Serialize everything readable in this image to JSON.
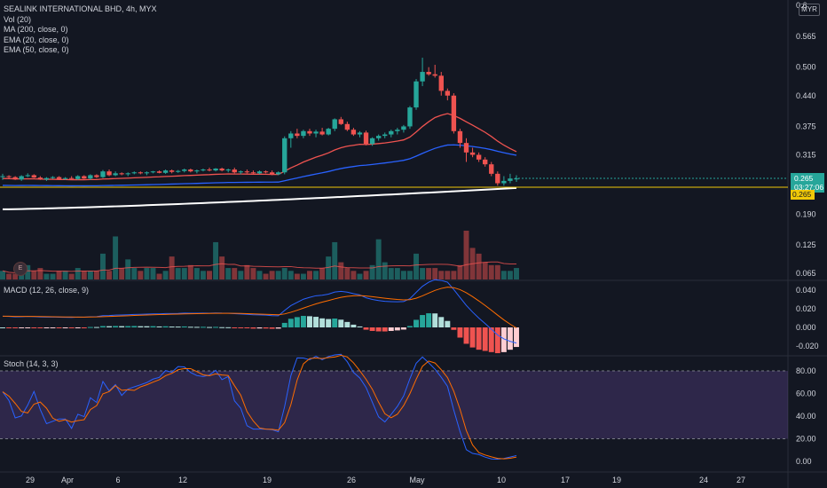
{
  "header": {
    "title": "SEALINK INTERNATIONAL BHD, 4h, MYX",
    "currency": "MYR",
    "indicators": [
      "Vol (20)",
      "MA (200, close, 0)",
      "EMA (20, close, 0)",
      "EMA (50, close, 0)"
    ],
    "macd_title": "MACD (12, 26, close, 9)",
    "stoch_title": "Stoch (14, 3, 3)"
  },
  "badges": {
    "current_price": "0.265",
    "countdown": "03:27:06",
    "level": "0.265",
    "earnings": "E"
  },
  "colors": {
    "background": "#131722",
    "up": "#26a69a",
    "down": "#ef5350",
    "ema20": "#ef5350",
    "ema50": "#2962ff",
    "ma200": "#ffffff",
    "macd": "#2962ff",
    "signal": "#ff6d00",
    "stoch_k": "#2962ff",
    "stoch_d": "#ff6d00",
    "stoch_band": "#7e57c2",
    "level_line": "#f0c808"
  },
  "chart_data": {
    "type": "candlestick",
    "price_axis": {
      "ticks": [
        "0.565",
        "0.500",
        "0.440",
        "0.375",
        "0.315",
        "0.255",
        "0.190",
        "0.125",
        "0.065"
      ],
      "top_partial": "0.6"
    },
    "volume": [
      3,
      2,
      2,
      3,
      5,
      3,
      4,
      2,
      2,
      3,
      3,
      2,
      4,
      3,
      3,
      3,
      9,
      3,
      15,
      4,
      7,
      4,
      3,
      4,
      4,
      2,
      3,
      8,
      4,
      4,
      5,
      4,
      3,
      3,
      13,
      8,
      4,
      4,
      3,
      5,
      4,
      3,
      2,
      3,
      3,
      4,
      3,
      2,
      2,
      3,
      3,
      4,
      8,
      13,
      6,
      4,
      3,
      2,
      3,
      5,
      14,
      6,
      4,
      4,
      3,
      3,
      9,
      4,
      4,
      4,
      3,
      3,
      3,
      5,
      17,
      11,
      9,
      6,
      5,
      5,
      3,
      3,
      4
    ],
    "macd_axis": {
      "ticks": [
        "0.040",
        "0.020",
        "0.000",
        "-0.020"
      ]
    },
    "stoch_axis": {
      "ticks": [
        "80.00",
        "60.00",
        "40.00",
        "20.00",
        "0.00"
      ]
    },
    "time_axis": [
      "29",
      "Apr",
      "6",
      "12",
      "19",
      "26",
      "May",
      "10",
      "17",
      "19",
      "24",
      "27"
    ],
    "time_axis_display": [
      {
        "label": "29"
      },
      {
        "label": "Apr"
      },
      {
        "label": "6"
      },
      {
        "label": "12"
      },
      {
        "label": "19"
      },
      {
        "label": "26"
      },
      {
        "label": "May"
      },
      {
        "label": "10"
      },
      {
        "label": "17"
      },
      {
        "label": "19"
      },
      {
        "label": "24"
      },
      {
        "label": "27"
      }
    ],
    "candles": [
      [
        0.27,
        0.275,
        0.262,
        0.27
      ],
      [
        0.27,
        0.272,
        0.265,
        0.268
      ],
      [
        0.268,
        0.27,
        0.262,
        0.263
      ],
      [
        0.263,
        0.272,
        0.26,
        0.27
      ],
      [
        0.27,
        0.276,
        0.268,
        0.272
      ],
      [
        0.272,
        0.274,
        0.266,
        0.267
      ],
      [
        0.267,
        0.27,
        0.262,
        0.263
      ],
      [
        0.263,
        0.268,
        0.26,
        0.266
      ],
      [
        0.266,
        0.27,
        0.264,
        0.268
      ],
      [
        0.268,
        0.27,
        0.262,
        0.264
      ],
      [
        0.264,
        0.268,
        0.262,
        0.266
      ],
      [
        0.266,
        0.27,
        0.263,
        0.264
      ],
      [
        0.264,
        0.272,
        0.262,
        0.27
      ],
      [
        0.27,
        0.272,
        0.264,
        0.265
      ],
      [
        0.265,
        0.274,
        0.262,
        0.272
      ],
      [
        0.272,
        0.274,
        0.266,
        0.268
      ],
      [
        0.268,
        0.283,
        0.266,
        0.28
      ],
      [
        0.28,
        0.284,
        0.27,
        0.272
      ],
      [
        0.272,
        0.28,
        0.27,
        0.276
      ],
      [
        0.276,
        0.278,
        0.272,
        0.274
      ],
      [
        0.274,
        0.278,
        0.27,
        0.276
      ],
      [
        0.276,
        0.28,
        0.274,
        0.278
      ],
      [
        0.278,
        0.28,
        0.274,
        0.276
      ],
      [
        0.276,
        0.28,
        0.272,
        0.278
      ],
      [
        0.278,
        0.281,
        0.276,
        0.28
      ],
      [
        0.28,
        0.282,
        0.276,
        0.277
      ],
      [
        0.277,
        0.284,
        0.275,
        0.282
      ],
      [
        0.282,
        0.284,
        0.276,
        0.279
      ],
      [
        0.279,
        0.283,
        0.277,
        0.281
      ],
      [
        0.281,
        0.286,
        0.278,
        0.284
      ],
      [
        0.284,
        0.286,
        0.278,
        0.28
      ],
      [
        0.28,
        0.284,
        0.276,
        0.282
      ],
      [
        0.282,
        0.286,
        0.28,
        0.284
      ],
      [
        0.284,
        0.288,
        0.28,
        0.282
      ],
      [
        0.282,
        0.287,
        0.28,
        0.286
      ],
      [
        0.286,
        0.288,
        0.28,
        0.282
      ],
      [
        0.282,
        0.286,
        0.278,
        0.284
      ],
      [
        0.284,
        0.288,
        0.276,
        0.278
      ],
      [
        0.278,
        0.282,
        0.274,
        0.28
      ],
      [
        0.28,
        0.284,
        0.276,
        0.278
      ],
      [
        0.278,
        0.282,
        0.274,
        0.276
      ],
      [
        0.276,
        0.282,
        0.274,
        0.28
      ],
      [
        0.28,
        0.282,
        0.276,
        0.278
      ],
      [
        0.278,
        0.282,
        0.272,
        0.274
      ],
      [
        0.274,
        0.28,
        0.272,
        0.278
      ],
      [
        0.278,
        0.354,
        0.274,
        0.35
      ],
      [
        0.35,
        0.365,
        0.33,
        0.36
      ],
      [
        0.36,
        0.37,
        0.35,
        0.355
      ],
      [
        0.355,
        0.368,
        0.35,
        0.365
      ],
      [
        0.365,
        0.37,
        0.355,
        0.36
      ],
      [
        0.36,
        0.368,
        0.352,
        0.364
      ],
      [
        0.364,
        0.372,
        0.356,
        0.358
      ],
      [
        0.358,
        0.372,
        0.356,
        0.37
      ],
      [
        0.37,
        0.392,
        0.365,
        0.39
      ],
      [
        0.39,
        0.395,
        0.378,
        0.38
      ],
      [
        0.38,
        0.385,
        0.365,
        0.368
      ],
      [
        0.368,
        0.372,
        0.355,
        0.358
      ],
      [
        0.358,
        0.365,
        0.352,
        0.362
      ],
      [
        0.362,
        0.366,
        0.335,
        0.338
      ],
      [
        0.338,
        0.352,
        0.334,
        0.35
      ],
      [
        0.35,
        0.358,
        0.345,
        0.355
      ],
      [
        0.355,
        0.362,
        0.35,
        0.358
      ],
      [
        0.358,
        0.368,
        0.352,
        0.365
      ],
      [
        0.365,
        0.372,
        0.358,
        0.368
      ],
      [
        0.368,
        0.378,
        0.362,
        0.375
      ],
      [
        0.375,
        0.418,
        0.37,
        0.415
      ],
      [
        0.415,
        0.475,
        0.41,
        0.47
      ],
      [
        0.47,
        0.52,
        0.46,
        0.49
      ],
      [
        0.49,
        0.5,
        0.482,
        0.485
      ],
      [
        0.485,
        0.505,
        0.478,
        0.482
      ],
      [
        0.482,
        0.49,
        0.44,
        0.45
      ],
      [
        0.45,
        0.455,
        0.43,
        0.44
      ],
      [
        0.44,
        0.445,
        0.36,
        0.365
      ],
      [
        0.365,
        0.37,
        0.33,
        0.34
      ],
      [
        0.34,
        0.35,
        0.3,
        0.32
      ],
      [
        0.32,
        0.33,
        0.31,
        0.315
      ],
      [
        0.315,
        0.32,
        0.3,
        0.305
      ],
      [
        0.305,
        0.31,
        0.29,
        0.295
      ],
      [
        0.295,
        0.3,
        0.27,
        0.275
      ],
      [
        0.275,
        0.28,
        0.25,
        0.255
      ],
      [
        0.255,
        0.27,
        0.25,
        0.26
      ],
      [
        0.26,
        0.275,
        0.255,
        0.265
      ],
      [
        0.265,
        0.272,
        0.258,
        0.265
      ]
    ]
  }
}
